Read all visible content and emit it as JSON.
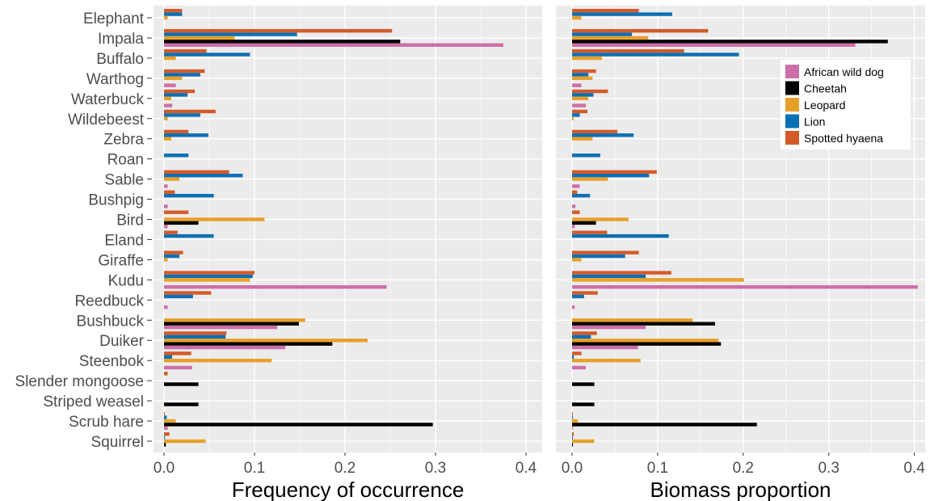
{
  "colors": {
    "African wild dog": "#cc6fa8",
    "Cheetah": "#000000",
    "Leopard": "#e6a12b",
    "Lion": "#0b6fb5",
    "Spotted hyaena": "#d35b2a",
    "panel_bg": "#ebebeb",
    "grid": "#ffffff"
  },
  "chart_data": [
    {
      "type": "bar",
      "orientation": "horizontal",
      "xlabel": "Frequency of occurrence",
      "xlim": [
        0,
        0.42
      ],
      "xticks": [
        "0.0",
        "0.1",
        "0.2",
        "0.3",
        "0.4"
      ],
      "grid": true,
      "categories": [
        "Elephant",
        "Impala",
        "Buffalo",
        "Warthog",
        "Waterbuck",
        "Wildebeest",
        "Zebra",
        "Roan",
        "Sable",
        "Bushpig",
        "Bird",
        "Eland",
        "Giraffe",
        "Kudu",
        "Reedbuck",
        "Bushbuck",
        "Duiker",
        "Steenbok",
        "Slender mongoose",
        "Striped weasel",
        "Scrub hare",
        "Squirrel"
      ],
      "series": [
        {
          "name": "Spotted hyaena",
          "values": [
            0.02,
            0.252,
            0.047,
            0.045,
            0.034,
            0.057,
            0.027,
            0,
            0.072,
            0.012,
            0.027,
            0.015,
            0.021,
            0.1,
            0.052,
            0,
            0.069,
            0.03,
            0.004,
            0,
            0.001,
            0.006
          ]
        },
        {
          "name": "Lion",
          "values": [
            0.02,
            0.147,
            0.095,
            0.04,
            0.026,
            0.04,
            0.049,
            0.027,
            0.087,
            0.055,
            0,
            0.055,
            0.017,
            0.098,
            0.032,
            0,
            0.068,
            0.009,
            0,
            0,
            0.003,
            0.001
          ]
        },
        {
          "name": "Leopard",
          "values": [
            0.004,
            0.078,
            0.013,
            0.02,
            0.008,
            0.004,
            0.008,
            0,
            0.017,
            0,
            0.111,
            0,
            0.004,
            0.095,
            0,
            0.156,
            0.225,
            0.119,
            0,
            0,
            0.013,
            0.046
          ]
        },
        {
          "name": "Cheetah",
          "values": [
            0,
            0.261,
            0,
            0,
            0,
            0,
            0,
            0,
            0,
            0,
            0.038,
            0,
            0,
            0,
            0,
            0.149,
            0.186,
            0,
            0.038,
            0.038,
            0.297,
            0.002
          ]
        },
        {
          "name": "African wild dog",
          "values": [
            0,
            0.375,
            0,
            0.013,
            0.009,
            0,
            0,
            0,
            0.004,
            0.004,
            0.004,
            0,
            0,
            0.246,
            0.004,
            0.125,
            0.134,
            0.031,
            0,
            0,
            0.004,
            0
          ]
        }
      ]
    },
    {
      "type": "bar",
      "orientation": "horizontal",
      "xlabel": "Biomass proportion",
      "xlim": [
        0,
        0.42
      ],
      "xticks": [
        "0.0",
        "0.1",
        "0.2",
        "0.3",
        "0.4"
      ],
      "grid": true,
      "legend_position": "top-right",
      "categories": [
        "Elephant",
        "Impala",
        "Buffalo",
        "Warthog",
        "Waterbuck",
        "Wildebeest",
        "Zebra",
        "Roan",
        "Sable",
        "Bushpig",
        "Bird",
        "Eland",
        "Giraffe",
        "Kudu",
        "Reedbuck",
        "Bushbuck",
        "Duiker",
        "Steenbok",
        "Slender mongoose",
        "Striped weasel",
        "Scrub hare",
        "Squirrel"
      ],
      "legend": [
        "African wild dog",
        "Cheetah",
        "Leopard",
        "Lion",
        "Spotted hyaena"
      ],
      "series": [
        {
          "name": "Spotted hyaena",
          "values": [
            0.078,
            0.159,
            0.131,
            0.028,
            0.042,
            0.018,
            0.053,
            0,
            0.099,
            0.006,
            0.009,
            0.041,
            0.078,
            0.116,
            0.03,
            0,
            0.029,
            0.011,
            0,
            0,
            0.001,
            0.002
          ]
        },
        {
          "name": "Lion",
          "values": [
            0.117,
            0.07,
            0.195,
            0.019,
            0.025,
            0.009,
            0.072,
            0.033,
            0.09,
            0.021,
            0,
            0.113,
            0.062,
            0.086,
            0.014,
            0,
            0.022,
            0.002,
            0,
            0,
            0.001,
            0.001
          ]
        },
        {
          "name": "Leopard",
          "values": [
            0.011,
            0.089,
            0.035,
            0.024,
            0.019,
            0.002,
            0.024,
            0,
            0.042,
            0,
            0.066,
            0,
            0.011,
            0.201,
            0,
            0.141,
            0.171,
            0.08,
            0,
            0,
            0.007,
            0.026
          ]
        },
        {
          "name": "Cheetah",
          "values": [
            0,
            0.369,
            0,
            0,
            0,
            0,
            0,
            0,
            0,
            0,
            0.028,
            0,
            0,
            0,
            0,
            0.167,
            0.174,
            0,
            0.026,
            0.026,
            0.216,
            0.001
          ]
        },
        {
          "name": "African wild dog",
          "values": [
            0,
            0.331,
            0,
            0.011,
            0.016,
            0,
            0,
            0,
            0.009,
            0.004,
            0.003,
            0,
            0,
            0.404,
            0.003,
            0.086,
            0.077,
            0.016,
            0,
            0,
            0.001,
            0
          ]
        }
      ]
    }
  ]
}
